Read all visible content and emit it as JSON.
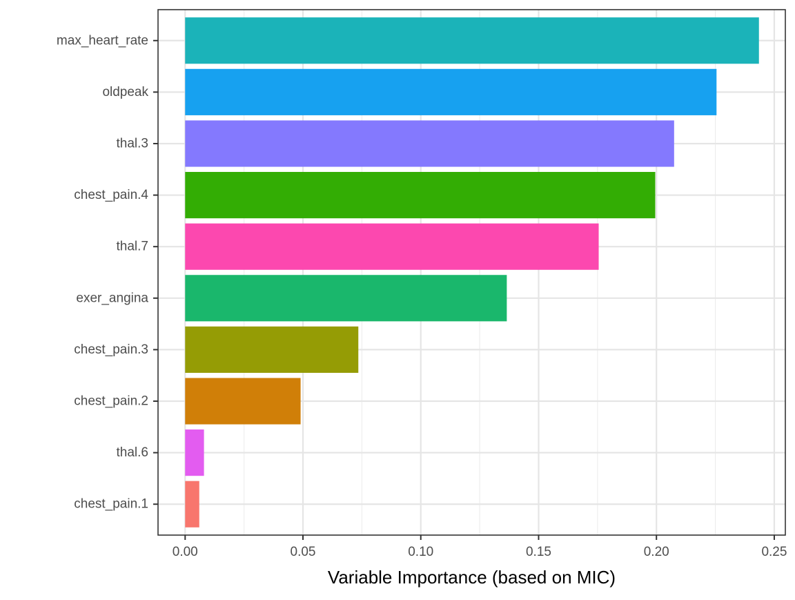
{
  "chart_data": {
    "type": "bar",
    "orientation": "horizontal",
    "xlabel": "Variable Importance (based on MIC)",
    "ylabel": "",
    "xlim": [
      -0.0115,
      0.2547
    ],
    "x_ticks": [
      0.0,
      0.05,
      0.1,
      0.15,
      0.2,
      0.25
    ],
    "x_tick_labels": [
      "0.00",
      "0.05",
      "0.10",
      "0.15",
      "0.20",
      "0.25"
    ],
    "grid": true,
    "legend": "none",
    "categories": [
      "chest_pain.1",
      "thal.6",
      "chest_pain.2",
      "chest_pain.3",
      "exer_angina",
      "thal.7",
      "chest_pain.4",
      "thal.3",
      "oldpeak",
      "max_heart_rate"
    ],
    "values": [
      0.006,
      0.008,
      0.049,
      0.0735,
      0.1365,
      0.1755,
      0.1995,
      0.2075,
      0.2255,
      0.2435
    ],
    "colors": [
      "#F8766D",
      "#E76BF3",
      "#D39200",
      "#93AA00",
      "#00BA38",
      "#FF62BC",
      "#00B909",
      "#8080FF",
      "#0CA0F0",
      "#18B4BA"
    ],
    "bar_colors_by_category": {
      "chest_pain.1": "#F8766D",
      "thal.6": "#E35CF0",
      "chest_pain.2": "#D07F08",
      "chest_pain.3": "#959C05",
      "exer_angina": "#1AB76C",
      "thal.7": "#FC48AF",
      "chest_pain.4": "#33AD04",
      "thal.3": "#8479FE",
      "oldpeak": "#17A1F0",
      "max_heart_rate": "#1BB3B9"
    }
  }
}
